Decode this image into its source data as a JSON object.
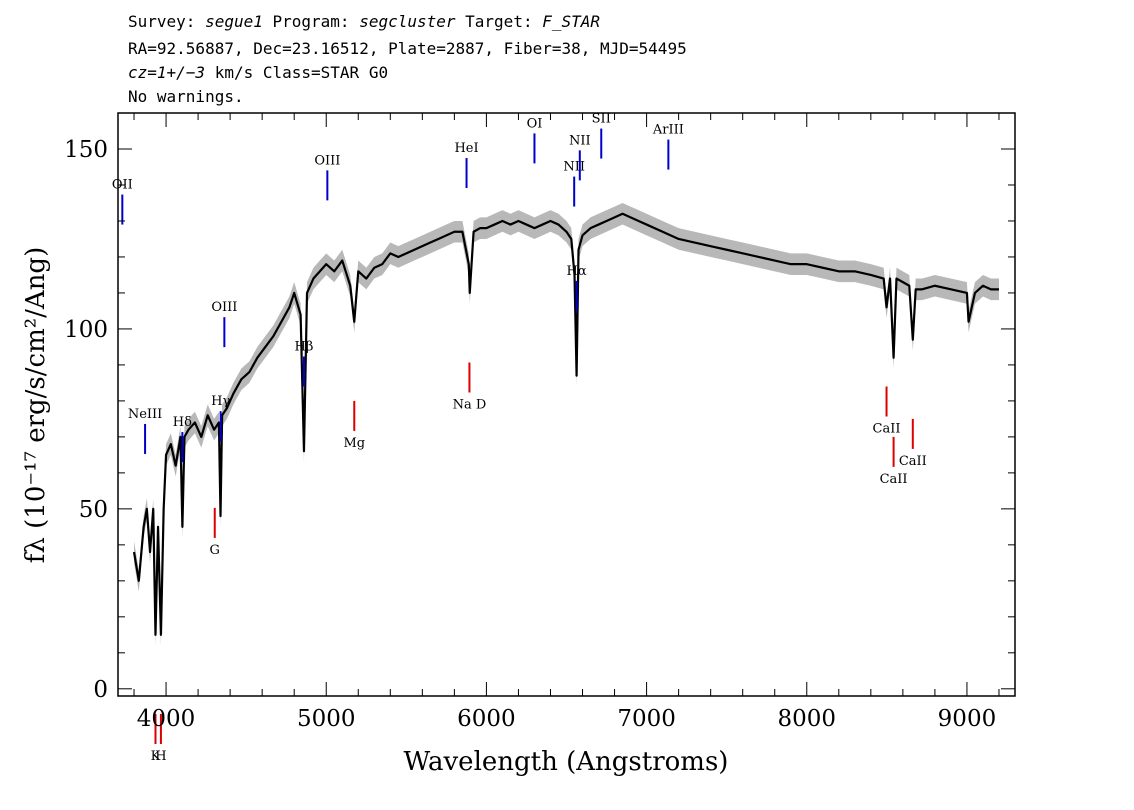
{
  "header": {
    "line1": {
      "survey_label": "Survey: ",
      "survey": "segue1",
      "program_label": " Program: ",
      "program": "segcluster",
      "target_label": " Target: ",
      "target": "F_STAR"
    },
    "line2": "RA=92.56887, Dec=23.16512, Plate=2887, Fiber=38, MJD=54495",
    "line3": {
      "cz": "cz=1+/−3",
      "rest": " km/s Class=STAR G0"
    },
    "line4": "No warnings."
  },
  "colors": {
    "spectrum": "#000000",
    "error_band": "#b8b8b8",
    "emission_marker": "#0000cc",
    "absorption_marker": "#dd0000",
    "axis": "#000000"
  },
  "chart_data": {
    "type": "line",
    "xlabel": "Wavelength (Angstroms)",
    "ylabel": "fλ (10⁻¹⁷ erg/s/cm²/Ang)",
    "xlim": [
      3700,
      9300
    ],
    "ylim": [
      -2,
      160
    ],
    "x_ticks": [
      4000,
      5000,
      6000,
      7000,
      8000,
      9000
    ],
    "y_ticks": [
      0,
      50,
      100,
      150
    ],
    "x_tick_labels": [
      "4000",
      "5000",
      "6000",
      "7000",
      "8000",
      "9000"
    ],
    "y_tick_labels": [
      "0",
      "50",
      "100",
      "150"
    ],
    "series": [
      {
        "x": [
          3800,
          3830,
          3860,
          3880,
          3900,
          3920,
          3934,
          3950,
          3968,
          3985,
          4000,
          4030,
          4060,
          4090,
          4102,
          4115,
          4140,
          4180,
          4220,
          4260,
          4300,
          4330,
          4340,
          4350,
          4380,
          4420,
          4470,
          4520,
          4570,
          4620,
          4670,
          4720,
          4770,
          4800,
          4840,
          4861,
          4880,
          4920,
          4960,
          5000,
          5050,
          5100,
          5150,
          5175,
          5200,
          5250,
          5300,
          5350,
          5400,
          5450,
          5500,
          5550,
          5600,
          5650,
          5700,
          5750,
          5800,
          5850,
          5890,
          5896,
          5920,
          5960,
          6000,
          6050,
          6100,
          6150,
          6200,
          6250,
          6300,
          6350,
          6400,
          6450,
          6500,
          6530,
          6550,
          6563,
          6575,
          6600,
          6650,
          6700,
          6750,
          6800,
          6850,
          6900,
          6950,
          7000,
          7100,
          7200,
          7300,
          7400,
          7500,
          7600,
          7700,
          7800,
          7900,
          8000,
          8100,
          8200,
          8300,
          8400,
          8480,
          8498,
          8520,
          8542,
          8560,
          8600,
          8640,
          8662,
          8680,
          8720,
          8800,
          8900,
          9000,
          9010,
          9050,
          9100,
          9150,
          9200
        ],
        "values": [
          38,
          30,
          45,
          50,
          38,
          50,
          15,
          45,
          15,
          50,
          65,
          68,
          62,
          70,
          45,
          70,
          72,
          74,
          70,
          76,
          72,
          74,
          48,
          76,
          78,
          82,
          86,
          88,
          92,
          95,
          98,
          102,
          106,
          110,
          104,
          66,
          110,
          114,
          116,
          118,
          116,
          119,
          112,
          102,
          116,
          114,
          117,
          118,
          121,
          120,
          121,
          122,
          123,
          124,
          125,
          126,
          127,
          127,
          118,
          110,
          127,
          128,
          128,
          129,
          130,
          129,
          130,
          129,
          128,
          129,
          130,
          129,
          127,
          125,
          115,
          87,
          122,
          126,
          128,
          129,
          130,
          131,
          132,
          131,
          130,
          129,
          127,
          125,
          124,
          123,
          122,
          121,
          120,
          119,
          118,
          118,
          117,
          116,
          116,
          115,
          114,
          106,
          114,
          92,
          114,
          113,
          112,
          97,
          111,
          111,
          112,
          111,
          110,
          102,
          110,
          112,
          111,
          111
        ],
        "error_band": 3
      }
    ],
    "line_markers": [
      {
        "label": "OII",
        "wavelength": 3727,
        "type": "emission"
      },
      {
        "label": "NeIII",
        "wavelength": 3869,
        "type": "emission"
      },
      {
        "label": "Hδ",
        "wavelength": 4102,
        "type": "emission"
      },
      {
        "label": "Hγ",
        "wavelength": 4341,
        "type": "emission"
      },
      {
        "label": "OIII",
        "wavelength": 4364,
        "type": "emission"
      },
      {
        "label": "Hβ",
        "wavelength": 4861,
        "type": "emission"
      },
      {
        "label": "OIII",
        "wavelength": 5007,
        "type": "emission"
      },
      {
        "label": "HeI",
        "wavelength": 5876,
        "type": "emission"
      },
      {
        "label": "OI",
        "wavelength": 6300,
        "type": "emission"
      },
      {
        "label": "NII",
        "wavelength": 6548,
        "type": "emission"
      },
      {
        "label": "Hα",
        "wavelength": 6563,
        "type": "emission"
      },
      {
        "label": "NII",
        "wavelength": 6583,
        "type": "emission"
      },
      {
        "label": "SII",
        "wavelength": 6717,
        "type": "emission"
      },
      {
        "label": "ArIII",
        "wavelength": 7136,
        "type": "emission"
      },
      {
        "label": "K",
        "wavelength": 3934,
        "type": "absorption"
      },
      {
        "label": "H",
        "wavelength": 3968,
        "type": "absorption"
      },
      {
        "label": "G",
        "wavelength": 4304,
        "type": "absorption"
      },
      {
        "label": "Mg",
        "wavelength": 5175,
        "type": "absorption"
      },
      {
        "label": "Na D",
        "wavelength": 5894,
        "type": "absorption"
      },
      {
        "label": "CaII",
        "wavelength": 8498,
        "type": "absorption"
      },
      {
        "label": "CaII",
        "wavelength": 8542,
        "type": "absorption"
      },
      {
        "label": "CaII",
        "wavelength": 8662,
        "type": "absorption"
      }
    ]
  }
}
